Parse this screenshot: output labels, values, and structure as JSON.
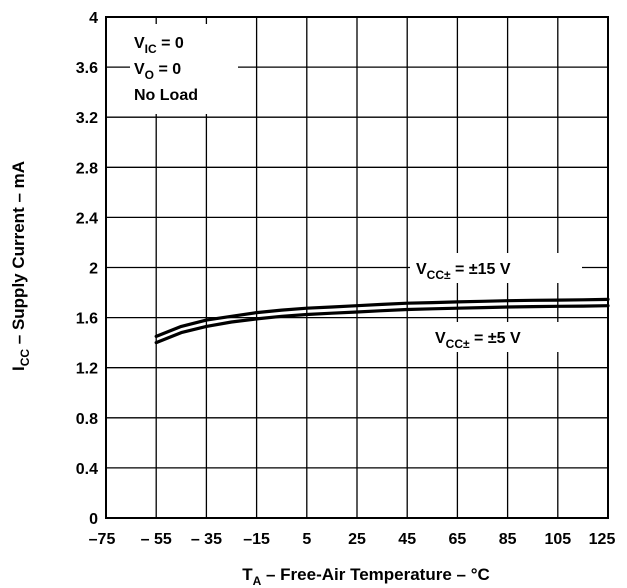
{
  "chart_data": {
    "type": "line",
    "title": "",
    "xlabel": {
      "main": "T",
      "sub": "A",
      "rest": " – Free-Air Temperature – °C"
    },
    "ylabel": {
      "main": "I",
      "sub": "CC",
      "rest": " – Supply Current – mA"
    },
    "xlim": [
      -75,
      125
    ],
    "ylim": [
      0,
      4
    ],
    "x_ticks": [
      "–75",
      "– 55",
      "– 35",
      "–15",
      "5",
      "25",
      "45",
      "65",
      "85",
      "105",
      "125"
    ],
    "y_ticks": [
      "0",
      "0.4",
      "0.8",
      "1.2",
      "1.6",
      "2",
      "2.4",
      "2.8",
      "3.2",
      "3.6",
      "4"
    ],
    "grid": true,
    "conditions": [
      {
        "main": "V",
        "sub": "IC",
        "rest": " = 0"
      },
      {
        "main": "V",
        "sub": "O",
        "rest": " = 0"
      },
      {
        "main": "No Load",
        "sub": "",
        "rest": ""
      }
    ],
    "series": [
      {
        "label_main": "V",
        "label_sub": "CC±",
        "label_rest": " = ±15 V",
        "x": [
          -55,
          -45,
          -35,
          -25,
          -15,
          -5,
          5,
          15,
          25,
          35,
          45,
          55,
          65,
          75,
          85,
          95,
          105,
          115,
          125
        ],
        "y": [
          1.45,
          1.53,
          1.58,
          1.61,
          1.64,
          1.66,
          1.675,
          1.685,
          1.695,
          1.705,
          1.715,
          1.72,
          1.725,
          1.73,
          1.735,
          1.738,
          1.74,
          1.742,
          1.745
        ]
      },
      {
        "label_main": "V",
        "label_sub": "CC±",
        "label_rest": " = ±5 V",
        "x": [
          -55,
          -45,
          -35,
          -25,
          -15,
          -5,
          5,
          15,
          25,
          35,
          45,
          55,
          65,
          75,
          85,
          95,
          105,
          115,
          125
        ],
        "y": [
          1.4,
          1.48,
          1.53,
          1.565,
          1.59,
          1.61,
          1.625,
          1.635,
          1.645,
          1.655,
          1.665,
          1.67,
          1.675,
          1.68,
          1.685,
          1.688,
          1.69,
          1.692,
          1.695
        ]
      }
    ]
  }
}
